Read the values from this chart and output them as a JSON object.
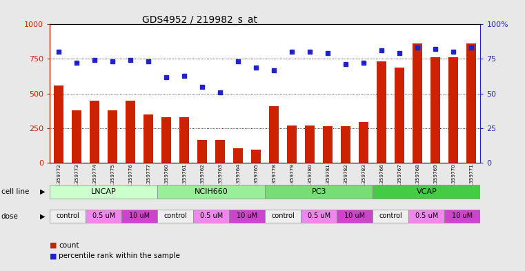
{
  "title": "GDS4952 / 219982_s_at",
  "samples": [
    "GSM1359772",
    "GSM1359773",
    "GSM1359774",
    "GSM1359775",
    "GSM1359776",
    "GSM1359777",
    "GSM1359760",
    "GSM1359761",
    "GSM1359762",
    "GSM1359763",
    "GSM1359764",
    "GSM1359765",
    "GSM1359778",
    "GSM1359779",
    "GSM1359780",
    "GSM1359781",
    "GSM1359782",
    "GSM1359783",
    "GSM1359766",
    "GSM1359767",
    "GSM1359768",
    "GSM1359769",
    "GSM1359770",
    "GSM1359771"
  ],
  "counts": [
    560,
    380,
    450,
    380,
    450,
    350,
    330,
    330,
    165,
    165,
    105,
    95,
    410,
    270,
    270,
    265,
    265,
    295,
    730,
    690,
    860,
    760,
    760,
    860
  ],
  "percentiles": [
    80,
    72,
    74,
    73,
    74,
    73,
    62,
    63,
    55,
    51,
    73,
    69,
    67,
    80,
    80,
    79,
    71,
    72,
    81,
    79,
    83,
    82,
    80,
    83
  ],
  "bar_color": "#cc2200",
  "dot_color": "#2222cc",
  "ylim_left": [
    0,
    1000
  ],
  "ylim_right": [
    0,
    100
  ],
  "yticks_left": [
    0,
    250,
    500,
    750,
    1000
  ],
  "yticks_right": [
    0,
    25,
    50,
    75,
    100
  ],
  "cell_line_colors": {
    "LNCAP": "#ccffcc",
    "NCIH660": "#99ee99",
    "PC3": "#77dd77",
    "VCAP": "#44cc44"
  },
  "dose_colors": {
    "control": "#eeeeee",
    "0.5 uM": "#ee88ee",
    "10 uM": "#cc44cc"
  },
  "cell_line_groups": [
    {
      "label": "LNCAP",
      "start": 0,
      "end": 6
    },
    {
      "label": "NCIH660",
      "start": 6,
      "end": 12
    },
    {
      "label": "PC3",
      "start": 12,
      "end": 18
    },
    {
      "label": "VCAP",
      "start": 18,
      "end": 24
    }
  ],
  "dose_groups": [
    {
      "label": "control",
      "start": 0,
      "end": 2
    },
    {
      "label": "0.5 uM",
      "start": 2,
      "end": 4
    },
    {
      "label": "10 uM",
      "start": 4,
      "end": 6
    },
    {
      "label": "control",
      "start": 6,
      "end": 8
    },
    {
      "label": "0.5 uM",
      "start": 8,
      "end": 10
    },
    {
      "label": "10 uM",
      "start": 10,
      "end": 12
    },
    {
      "label": "control",
      "start": 12,
      "end": 14
    },
    {
      "label": "0.5 uM",
      "start": 14,
      "end": 16
    },
    {
      "label": "10 uM",
      "start": 16,
      "end": 18
    },
    {
      "label": "control",
      "start": 18,
      "end": 20
    },
    {
      "label": "0.5 uM",
      "start": 20,
      "end": 22
    },
    {
      "label": "10 uM",
      "start": 22,
      "end": 24
    }
  ],
  "bg_color": "#e8e8e8",
  "plot_bg_color": "#ffffff"
}
